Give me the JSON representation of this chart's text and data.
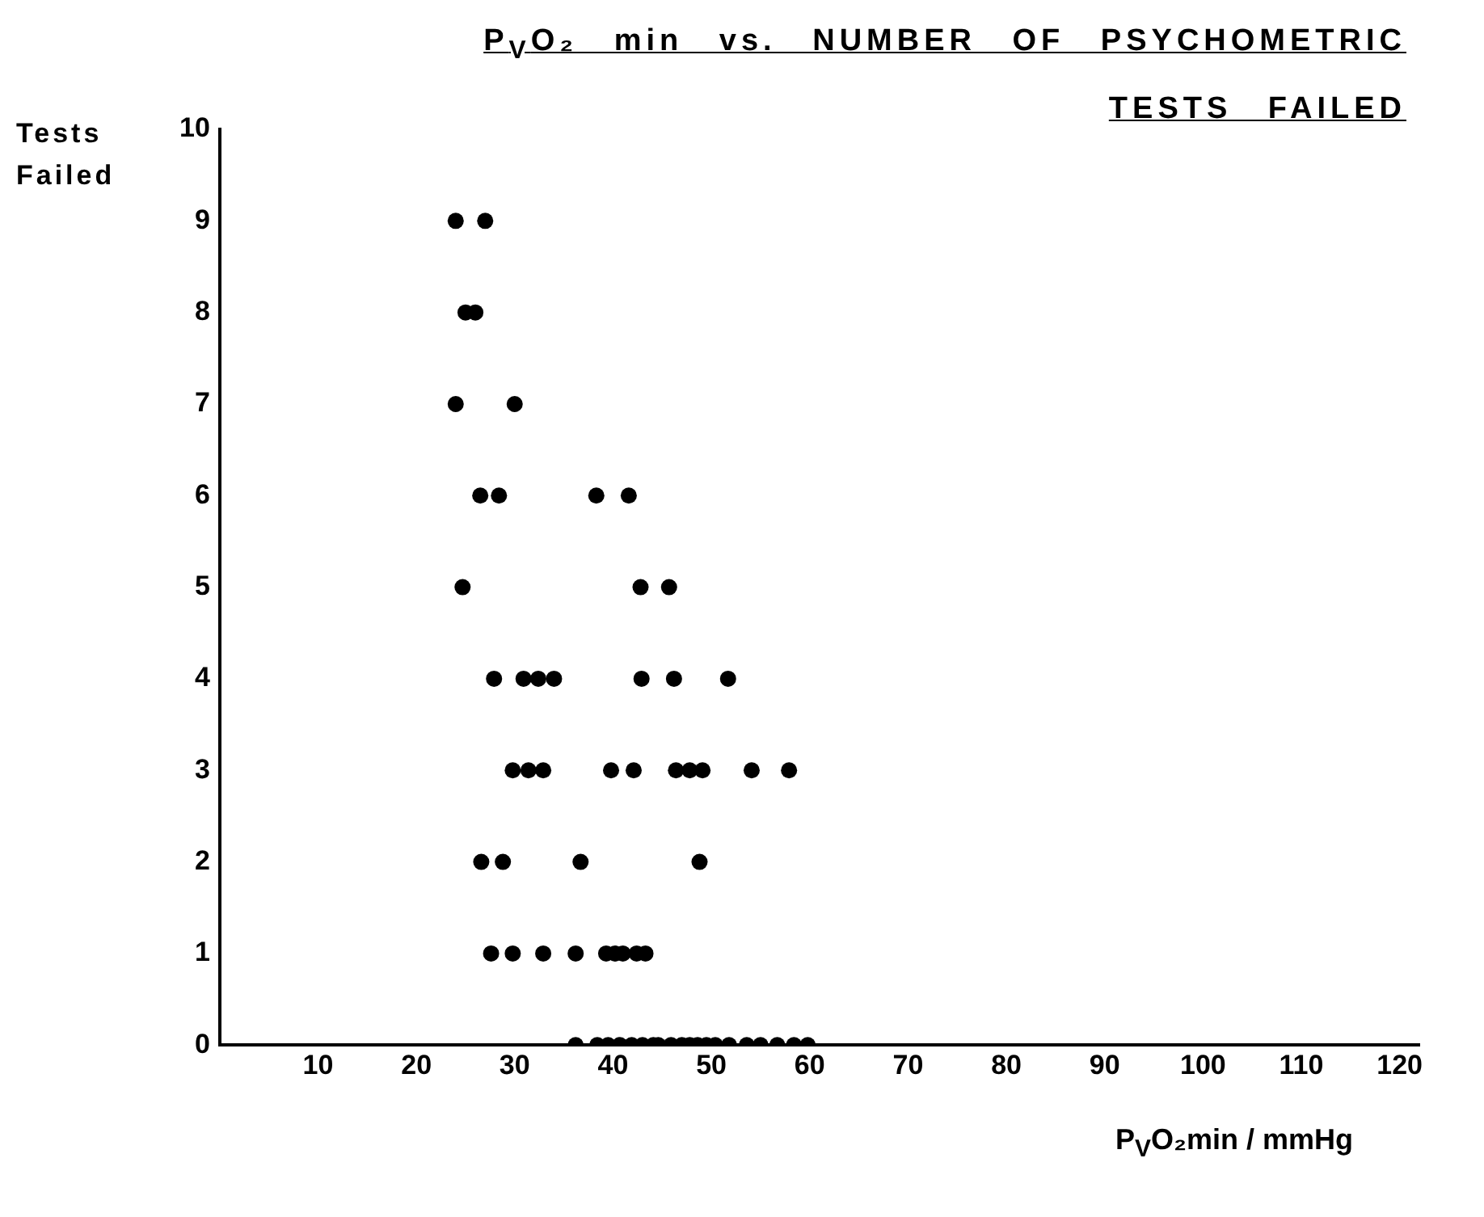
{
  "chart_data": {
    "type": "scatter",
    "title": "P$_{V}$O₂ min vs. NUMBER OF PSYCHOMETRIC TESTS FAILED",
    "xlabel": "P$_{V}$O₂min / mmHg",
    "ylabel": "Tests Failed",
    "series": [
      {
        "color": "#000000",
        "x": [
          24,
          27,
          25,
          26,
          24,
          30,
          26.5,
          28.4,
          38.3,
          41.6,
          24.7,
          42.8,
          45.7,
          27.9,
          30.9,
          32.4,
          34,
          42.9,
          46.2,
          51.7,
          29.8,
          31.4,
          32.9,
          39.8,
          42.1,
          46.4,
          47.8,
          49.1,
          54.1,
          57.9,
          26.6,
          28.8,
          36.7,
          48.8,
          27.6,
          29.8,
          32.9,
          36.2,
          39.3,
          40.2,
          41,
          42.4,
          43.3,
          36.2,
          38.4,
          39.5,
          40.7,
          41.9,
          43,
          44.1,
          44.6,
          45.9,
          47,
          47.8,
          48.6,
          49.5,
          50.4,
          51.8,
          53.6,
          55,
          56.7,
          58.4,
          59.8
        ],
        "values": [
          9,
          9,
          8,
          8,
          7,
          7,
          6,
          6,
          6,
          6,
          5,
          5,
          5,
          4,
          4,
          4,
          4,
          4,
          4,
          4,
          3,
          3,
          3,
          3,
          3,
          3,
          3,
          3,
          3,
          3,
          2,
          2,
          2,
          2,
          1,
          1,
          1,
          1,
          1,
          1,
          1,
          1,
          1,
          0,
          0,
          0,
          0,
          0,
          0,
          0,
          0,
          0,
          0,
          0,
          0,
          0,
          0,
          0,
          0,
          0,
          0,
          0,
          0
        ]
      }
    ],
    "xlim": [
      0,
      122
    ],
    "xticks": [
      10,
      20,
      30,
      40,
      50,
      60,
      70,
      80,
      90,
      100,
      110,
      120
    ],
    "ylim": [
      0,
      10
    ],
    "yticks": [
      0,
      1,
      2,
      3,
      4,
      5,
      6,
      7,
      8,
      9,
      10
    ],
    "grid": false,
    "legend": false,
    "marker": "circle"
  }
}
